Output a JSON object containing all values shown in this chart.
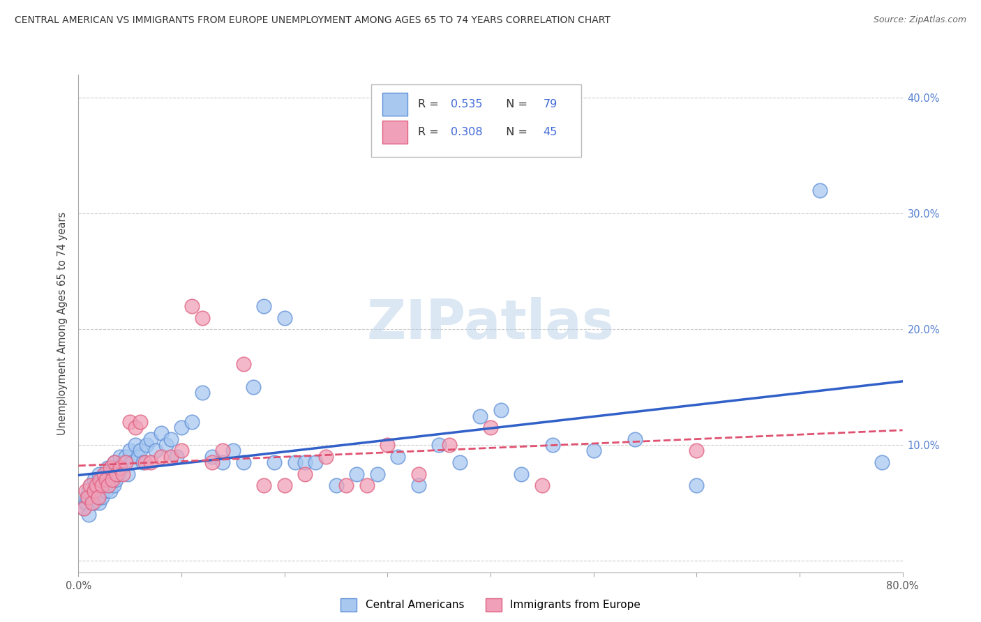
{
  "title": "CENTRAL AMERICAN VS IMMIGRANTS FROM EUROPE UNEMPLOYMENT AMONG AGES 65 TO 74 YEARS CORRELATION CHART",
  "source": "Source: ZipAtlas.com",
  "ylabel": "Unemployment Among Ages 65 to 74 years",
  "xlim": [
    0.0,
    0.8
  ],
  "ylim": [
    -0.01,
    0.42
  ],
  "xticks": [
    0.0,
    0.1,
    0.2,
    0.3,
    0.4,
    0.5,
    0.6,
    0.7,
    0.8
  ],
  "yticks": [
    0.0,
    0.1,
    0.2,
    0.3,
    0.4
  ],
  "xtick_labels": [
    "0.0%",
    "",
    "",
    "",
    "",
    "",
    "",
    "",
    "80.0%"
  ],
  "ytick_labels_right": [
    "",
    "10.0%",
    "20.0%",
    "30.0%",
    "40.0%"
  ],
  "legend_bottom_labels": [
    "Central Americans",
    "Immigrants from Europe"
  ],
  "r_blue": 0.535,
  "n_blue": 79,
  "r_pink": 0.308,
  "n_pink": 45,
  "color_blue": "#A8C8F0",
  "color_pink": "#F0A0B8",
  "edge_blue": "#6090D8",
  "edge_pink": "#E06080",
  "line_blue": "#3060C8",
  "line_pink": "#E05070",
  "watermark": "ZIPatlas",
  "blue_x": [
    0.005,
    0.007,
    0.008,
    0.01,
    0.01,
    0.012,
    0.013,
    0.015,
    0.015,
    0.017,
    0.018,
    0.019,
    0.02,
    0.02,
    0.021,
    0.022,
    0.023,
    0.024,
    0.025,
    0.026,
    0.027,
    0.028,
    0.029,
    0.03,
    0.031,
    0.032,
    0.033,
    0.034,
    0.035,
    0.036,
    0.038,
    0.04,
    0.042,
    0.044,
    0.046,
    0.048,
    0.05,
    0.052,
    0.055,
    0.058,
    0.06,
    0.063,
    0.066,
    0.07,
    0.075,
    0.08,
    0.085,
    0.09,
    0.095,
    0.1,
    0.11,
    0.12,
    0.13,
    0.14,
    0.15,
    0.16,
    0.17,
    0.18,
    0.19,
    0.2,
    0.21,
    0.22,
    0.23,
    0.25,
    0.27,
    0.29,
    0.31,
    0.33,
    0.35,
    0.37,
    0.39,
    0.41,
    0.43,
    0.46,
    0.5,
    0.54,
    0.6,
    0.72,
    0.78
  ],
  "blue_y": [
    0.045,
    0.05,
    0.055,
    0.06,
    0.04,
    0.065,
    0.055,
    0.07,
    0.05,
    0.06,
    0.055,
    0.065,
    0.075,
    0.05,
    0.06,
    0.07,
    0.055,
    0.065,
    0.07,
    0.075,
    0.06,
    0.08,
    0.065,
    0.075,
    0.06,
    0.07,
    0.08,
    0.065,
    0.085,
    0.07,
    0.075,
    0.09,
    0.08,
    0.085,
    0.09,
    0.075,
    0.095,
    0.085,
    0.1,
    0.09,
    0.095,
    0.085,
    0.1,
    0.105,
    0.095,
    0.11,
    0.1,
    0.105,
    0.09,
    0.115,
    0.12,
    0.145,
    0.09,
    0.085,
    0.095,
    0.085,
    0.15,
    0.22,
    0.085,
    0.21,
    0.085,
    0.085,
    0.085,
    0.065,
    0.075,
    0.075,
    0.09,
    0.065,
    0.1,
    0.085,
    0.125,
    0.13,
    0.075,
    0.1,
    0.095,
    0.105,
    0.065,
    0.32,
    0.085
  ],
  "pink_x": [
    0.005,
    0.007,
    0.009,
    0.011,
    0.013,
    0.015,
    0.017,
    0.019,
    0.021,
    0.023,
    0.025,
    0.027,
    0.029,
    0.031,
    0.033,
    0.035,
    0.037,
    0.04,
    0.043,
    0.046,
    0.05,
    0.055,
    0.06,
    0.065,
    0.07,
    0.08,
    0.09,
    0.1,
    0.11,
    0.12,
    0.13,
    0.14,
    0.16,
    0.18,
    0.2,
    0.22,
    0.24,
    0.26,
    0.28,
    0.3,
    0.33,
    0.36,
    0.4,
    0.45,
    0.6
  ],
  "pink_y": [
    0.045,
    0.06,
    0.055,
    0.065,
    0.05,
    0.06,
    0.065,
    0.055,
    0.07,
    0.065,
    0.075,
    0.07,
    0.065,
    0.08,
    0.07,
    0.085,
    0.075,
    0.08,
    0.075,
    0.085,
    0.12,
    0.115,
    0.12,
    0.085,
    0.085,
    0.09,
    0.09,
    0.095,
    0.22,
    0.21,
    0.085,
    0.095,
    0.17,
    0.065,
    0.065,
    0.075,
    0.09,
    0.065,
    0.065,
    0.1,
    0.075,
    0.1,
    0.115,
    0.065,
    0.095
  ]
}
